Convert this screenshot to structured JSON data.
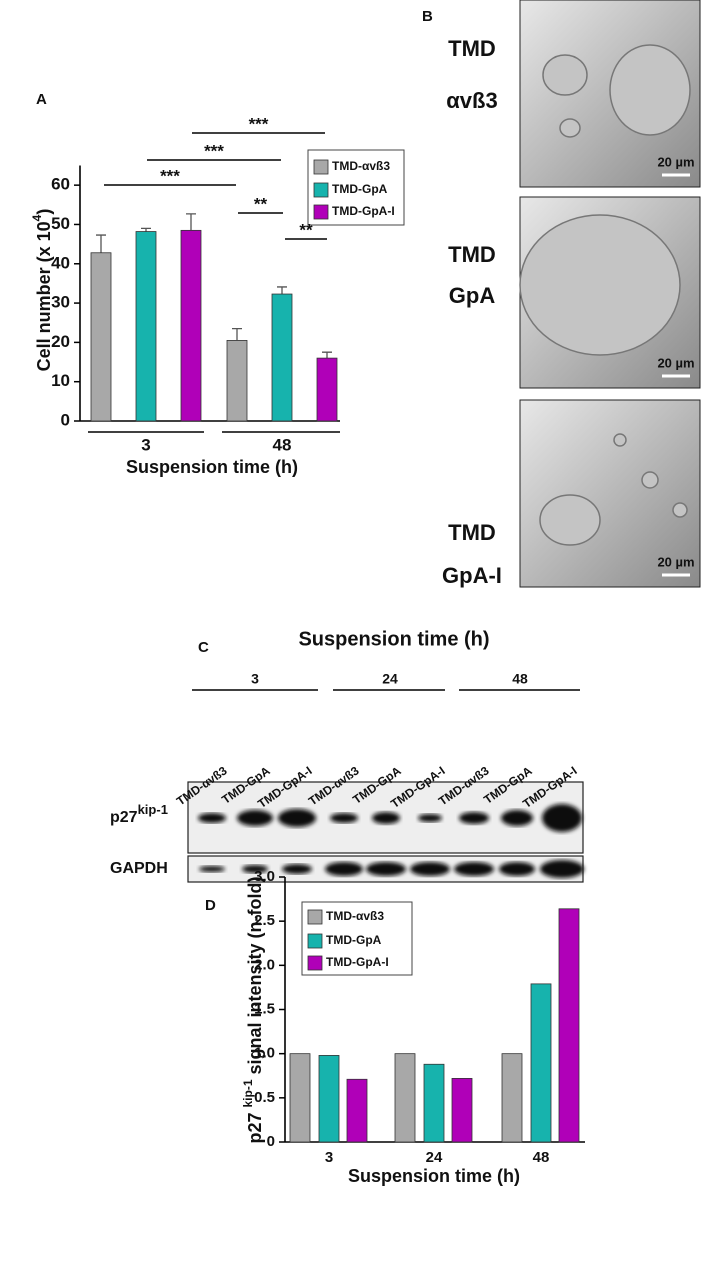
{
  "chart_data": [
    {
      "type": "bar",
      "panel": "A",
      "ylabel": "Cell number (x 10",
      "ylabel_sup": "4",
      "ylabel_end": ")",
      "xlabel": "Suspension time (h)",
      "categories": [
        "3",
        "48"
      ],
      "series": [
        {
          "name": "TMD-αvß3",
          "color": "#a8a8a8",
          "values": [
            42.8,
            20.5
          ],
          "errors": [
            4.5,
            3.0
          ]
        },
        {
          "name": "TMD-GpA",
          "color": "#17b3ad",
          "values": [
            48.2,
            32.3
          ],
          "errors": [
            0.8,
            1.8
          ]
        },
        {
          "name": "TMD-GpA-I",
          "color": "#b000b8",
          "values": [
            48.5,
            16.0
          ],
          "errors": [
            4.2,
            1.5
          ]
        }
      ],
      "significance": [
        "***",
        "***",
        "***",
        "**",
        "**"
      ],
      "ylim": [
        0,
        65
      ],
      "yticks": [
        0,
        10,
        20,
        30,
        40,
        50,
        60
      ]
    },
    {
      "type": "bar",
      "panel": "D",
      "ylabel": "p27 ",
      "ylabel_sup": "kip-1",
      "ylabel_end": " signal intensity (n-fold)",
      "xlabel": "Suspension time (h)",
      "categories": [
        "3",
        "24",
        "48"
      ],
      "series": [
        {
          "name": "TMD-αvß3",
          "color": "#a8a8a8",
          "values": [
            1.0,
            1.0,
            1.0
          ]
        },
        {
          "name": "TMD-GpA",
          "color": "#17b3ad",
          "values": [
            0.98,
            0.88,
            1.79
          ]
        },
        {
          "name": "TMD-GpA-I",
          "color": "#b000b8",
          "values": [
            0.71,
            0.72,
            2.64
          ]
        }
      ],
      "ylim": [
        0,
        3
      ],
      "yticks": [
        0,
        0.5,
        {
          "value": 1,
          "label": "1.0"
        },
        1.5,
        {
          "value": 2,
          "label": "2.0"
        },
        2.5,
        {
          "value": 3,
          "label": "3.0"
        }
      ]
    }
  ],
  "panel_b": {
    "label": "B",
    "images": [
      {
        "line1": "TMD",
        "line2": "αvß3",
        "color": "#707070",
        "scale": "20 µm"
      },
      {
        "line1": "TMD",
        "line2": "GpA",
        "color": "#17b3ad",
        "scale": "20 µm"
      },
      {
        "line1": "TMD",
        "line2": "GpA-I",
        "color": "#b000b8",
        "scale": "20 µm"
      }
    ]
  },
  "panel_c": {
    "label": "C",
    "title": "Suspension time (h)",
    "groups": [
      "3",
      "24",
      "48"
    ],
    "lanes": [
      "TMD-αvß3",
      "TMD-GpA",
      "TMD-GpA-I",
      "TMD-αvß3",
      "TMD-GpA",
      "TMD-GpA-I",
      "TMD-αvß3",
      "TMD-GpA",
      "TMD-GpA-I"
    ],
    "row1": "p27",
    "row1_sup": "kip-1",
    "row2": "GAPDH"
  }
}
